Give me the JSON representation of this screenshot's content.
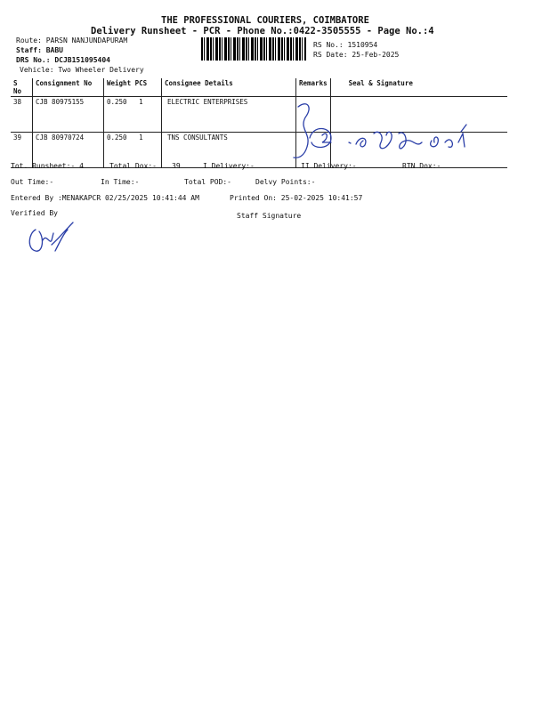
{
  "header": {
    "company": "THE PROFESSIONAL COURIERS, COIMBATORE",
    "subtitle": "Delivery Runsheet - PCR - Phone No.:0422-3505555 - Page No.:4",
    "route": "Route: PARSN NANJUNDAPURAM",
    "staff": "Staff: BABU",
    "drs_no": "DRS No.: DCJB151095404",
    "vehicle": "Vehicle: Two Wheeler Delivery",
    "rs_no": "RS No.: 1510954",
    "rs_date": "RS Date: 25-Feb-2025"
  },
  "table": {
    "columns": [
      "S No",
      "Consignment No",
      "Weight  PCS",
      "Consignee Details",
      "Remarks",
      "Seal & Signature"
    ],
    "rows": [
      {
        "sno": "38",
        "consignment": "CJB 80975155",
        "weight": "0.250",
        "pcs": "1",
        "consignee": "ELECTRIC  ENTERPRISES",
        "remarks": "",
        "seal": ""
      },
      {
        "sno": "39",
        "consignment": "CJB 80970724",
        "weight": "0.250",
        "pcs": "1",
        "consignee": "TNS CONSULTANTS",
        "remarks": "",
        "seal": ""
      }
    ]
  },
  "summary": {
    "tot_runsheet": "Tot. Runsheet:- 4",
    "total_dox": "Total Dox:-",
    "total_dox_value": "39",
    "i_delivery": "I Delivery:-",
    "ii_delivery": "II Delivery:-",
    "rtn_dox": "RTN Dox:-",
    "out_time": "Out Time:-",
    "in_time": "In Time:-",
    "total_pod": "Total POD:-",
    "delvy_points": "Delvy Points:-",
    "entered_by": "Entered By :MENAKAPCR 02/25/2025 10:41:44 AM",
    "printed_on": "Printed On: 25-02-2025 10:41:57",
    "verified_by": "Verified By",
    "staff_signature": "Staff Signature"
  },
  "colors": {
    "ink": "#111111",
    "pen": "#2b3fa8"
  }
}
